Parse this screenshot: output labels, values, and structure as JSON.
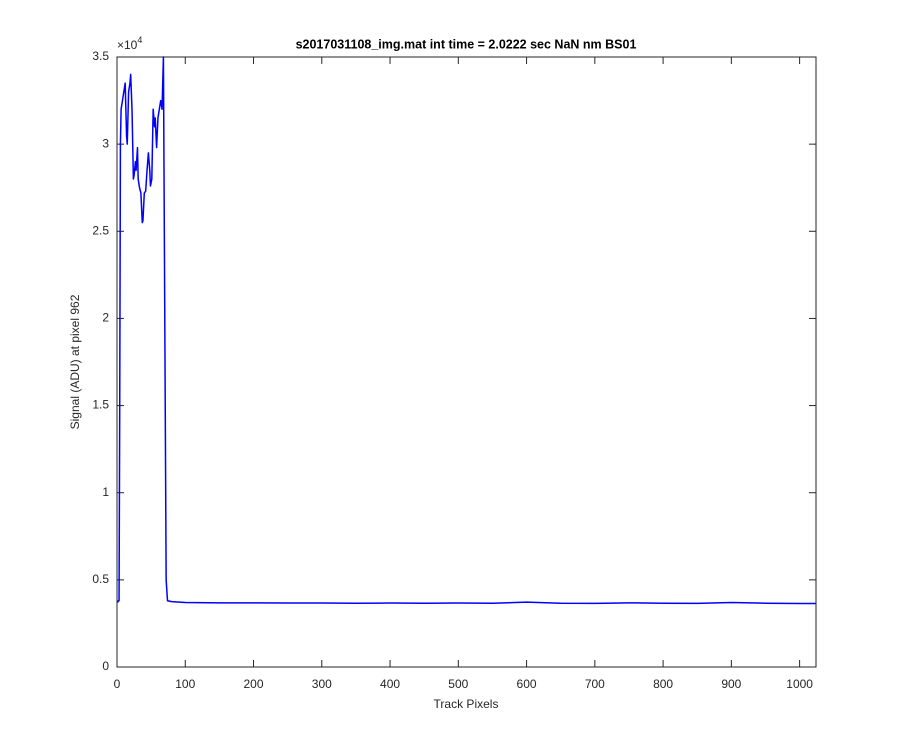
{
  "chart_data": {
    "type": "line",
    "title": "s2017031108_img.mat int time = 2.0222 sec  NaN nm BS01",
    "x_label": "Track Pixels",
    "y_label": "Signal (ADU) at pixel 962",
    "y_multiplier": {
      "base": "×10",
      "exponent": "4"
    },
    "xlim": [
      0,
      1024
    ],
    "xticks": [
      0,
      100,
      200,
      300,
      400,
      500,
      600,
      700,
      800,
      900,
      1000
    ],
    "ylim": [
      0,
      3.5
    ],
    "yticks": [
      0,
      0.5,
      1,
      1.5,
      2,
      2.5,
      3,
      3.5
    ],
    "grid": false,
    "series": [
      {
        "color": "#0000ff",
        "x": [
          1,
          2,
          3,
          4,
          5,
          6,
          8,
          10,
          12,
          14,
          15,
          17,
          19,
          20,
          22,
          24,
          25,
          27,
          28,
          30,
          31,
          33,
          35,
          37,
          38,
          40,
          42,
          44,
          46,
          48,
          49,
          51,
          53,
          55,
          56,
          58,
          60,
          62,
          64,
          66,
          68,
          70,
          72,
          74,
          80,
          100,
          150,
          200,
          250,
          300,
          350,
          400,
          450,
          500,
          550,
          600,
          650,
          700,
          750,
          800,
          850,
          900,
          950,
          1000,
          1024
        ],
        "values": [
          0.37,
          0.38,
          0.38,
          1.5,
          3.0,
          3.2,
          3.25,
          3.3,
          3.35,
          3.05,
          3.0,
          3.3,
          3.35,
          3.4,
          3.2,
          2.8,
          2.82,
          2.9,
          2.85,
          2.98,
          2.8,
          2.75,
          2.72,
          2.55,
          2.56,
          2.72,
          2.73,
          2.85,
          2.95,
          2.85,
          2.76,
          2.8,
          3.2,
          3.1,
          3.15,
          2.98,
          3.15,
          3.2,
          3.25,
          3.2,
          3.5,
          2.0,
          0.5,
          0.38,
          0.375,
          0.37,
          0.368,
          0.368,
          0.367,
          0.367,
          0.366,
          0.367,
          0.366,
          0.367,
          0.366,
          0.372,
          0.366,
          0.365,
          0.368,
          0.366,
          0.365,
          0.37,
          0.366,
          0.364,
          0.364
        ]
      }
    ]
  }
}
